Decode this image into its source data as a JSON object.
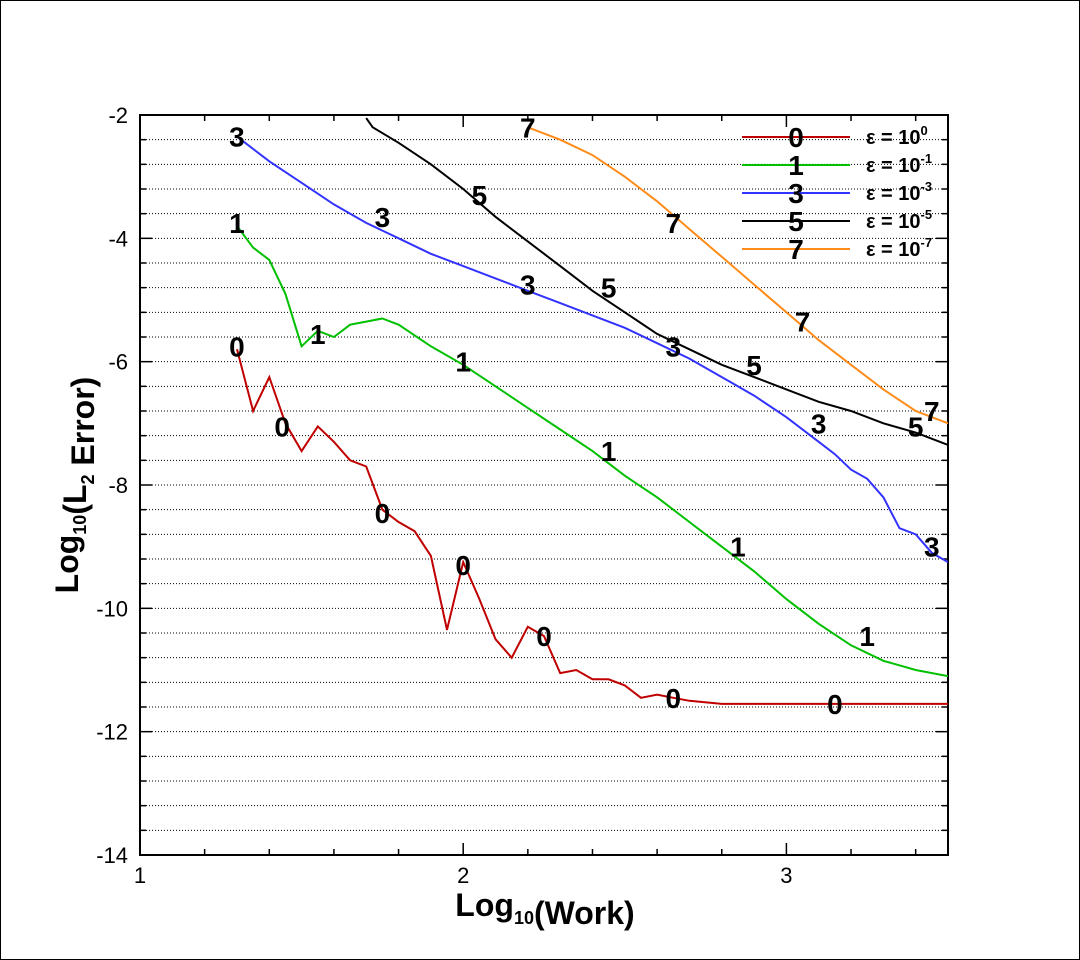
{
  "chart_data": {
    "type": "line",
    "xlabel": "Log10(Work)",
    "ylabel": "Log10(L2 Error)",
    "xlim": [
      1,
      3.5
    ],
    "ylim": [
      -14,
      -2
    ],
    "xticks": [
      "1",
      "2",
      "3"
    ],
    "yticks": [
      "-2",
      "-4",
      "-6",
      "-8",
      "-10",
      "-12",
      "-14"
    ],
    "grid": "horizontal dotted",
    "legend_position": "top-right",
    "series": [
      {
        "marker": "0",
        "label_base": "ε = 10",
        "label_exp": "0",
        "color": "#c00000",
        "x": [
          1.3,
          1.35,
          1.4,
          1.45,
          1.5,
          1.55,
          1.6,
          1.65,
          1.7,
          1.75,
          1.8,
          1.85,
          1.9,
          1.95,
          2.0,
          2.05,
          2.1,
          2.15,
          2.2,
          2.25,
          2.3,
          2.35,
          2.4,
          2.45,
          2.5,
          2.55,
          2.6,
          2.65,
          2.7,
          2.8,
          2.9,
          3.0,
          3.1,
          3.2,
          3.3,
          3.4,
          3.5
        ],
        "y": [
          -5.8,
          -6.8,
          -6.25,
          -7.0,
          -7.45,
          -7.05,
          -7.3,
          -7.6,
          -7.7,
          -8.4,
          -8.6,
          -8.75,
          -9.15,
          -10.35,
          -9.25,
          -9.85,
          -10.5,
          -10.8,
          -10.3,
          -10.45,
          -11.05,
          -11.0,
          -11.15,
          -11.15,
          -11.25,
          -11.45,
          -11.4,
          -11.45,
          -11.5,
          -11.55,
          -11.55,
          -11.55,
          -11.55,
          -11.55,
          -11.55,
          -11.55,
          -11.55
        ],
        "marker_positions": [
          [
            1.3,
            -5.75
          ],
          [
            1.44,
            -7.05
          ],
          [
            1.75,
            -8.45
          ],
          [
            2.0,
            -9.3
          ],
          [
            2.25,
            -10.45
          ],
          [
            2.65,
            -11.45
          ],
          [
            3.15,
            -11.55
          ]
        ]
      },
      {
        "marker": "1",
        "label_base": "ε = 10",
        "label_exp": "-1",
        "color": "#00c000",
        "x": [
          1.3,
          1.35,
          1.4,
          1.45,
          1.5,
          1.55,
          1.6,
          1.65,
          1.7,
          1.75,
          1.8,
          1.9,
          2.0,
          2.1,
          2.2,
          2.3,
          2.4,
          2.5,
          2.6,
          2.7,
          2.8,
          2.9,
          3.0,
          3.1,
          3.2,
          3.3,
          3.4,
          3.5
        ],
        "y": [
          -3.8,
          -4.15,
          -4.35,
          -4.9,
          -5.75,
          -5.5,
          -5.6,
          -5.4,
          -5.35,
          -5.3,
          -5.4,
          -5.75,
          -6.05,
          -6.4,
          -6.75,
          -7.1,
          -7.45,
          -7.85,
          -8.2,
          -8.6,
          -9.0,
          -9.4,
          -9.85,
          -10.25,
          -10.6,
          -10.85,
          -11.0,
          -11.1
        ],
        "marker_positions": [
          [
            1.3,
            -3.75
          ],
          [
            1.55,
            -5.55
          ],
          [
            2.0,
            -6.0
          ],
          [
            2.45,
            -7.45
          ],
          [
            2.85,
            -9.0
          ],
          [
            3.25,
            -10.45
          ]
        ]
      },
      {
        "marker": "3",
        "label_base": "ε = 10",
        "label_exp": "-3",
        "color": "#3333ff",
        "x": [
          1.3,
          1.4,
          1.5,
          1.6,
          1.7,
          1.8,
          1.9,
          2.0,
          2.1,
          2.2,
          2.3,
          2.4,
          2.5,
          2.6,
          2.7,
          2.8,
          2.9,
          3.0,
          3.1,
          3.15,
          3.2,
          3.25,
          3.3,
          3.35,
          3.4,
          3.45,
          3.5
        ],
        "y": [
          -2.35,
          -2.75,
          -3.1,
          -3.45,
          -3.75,
          -4.0,
          -4.25,
          -4.45,
          -4.65,
          -4.85,
          -5.05,
          -5.25,
          -5.45,
          -5.7,
          -5.95,
          -6.25,
          -6.55,
          -6.9,
          -7.3,
          -7.5,
          -7.75,
          -7.9,
          -8.2,
          -8.7,
          -8.8,
          -9.1,
          -9.25
        ],
        "marker_positions": [
          [
            1.3,
            -2.35
          ],
          [
            1.75,
            -3.65
          ],
          [
            2.2,
            -4.75
          ],
          [
            2.65,
            -5.75
          ],
          [
            3.1,
            -7.0
          ],
          [
            3.45,
            -9.0
          ]
        ]
      },
      {
        "marker": "5",
        "label_base": "ε = 10",
        "label_exp": "-5",
        "color": "#000000",
        "x": [
          1.7,
          1.72,
          1.8,
          1.9,
          2.0,
          2.1,
          2.2,
          2.3,
          2.4,
          2.5,
          2.6,
          2.7,
          2.8,
          2.9,
          3.0,
          3.1,
          3.2,
          3.3,
          3.4,
          3.5
        ],
        "y": [
          -2.05,
          -2.2,
          -2.45,
          -2.8,
          -3.2,
          -3.65,
          -4.05,
          -4.45,
          -4.85,
          -5.2,
          -5.55,
          -5.8,
          -6.05,
          -6.25,
          -6.45,
          -6.65,
          -6.8,
          -7.0,
          -7.15,
          -7.35
        ],
        "marker_positions": [
          [
            2.05,
            -3.3
          ],
          [
            2.45,
            -4.8
          ],
          [
            2.9,
            -6.05
          ],
          [
            3.4,
            -7.05
          ]
        ]
      },
      {
        "marker": "7",
        "label_base": "ε = 10",
        "label_exp": "-7",
        "color": "#ff8c1a",
        "x": [
          2.2,
          2.3,
          2.4,
          2.5,
          2.6,
          2.7,
          2.8,
          2.9,
          3.0,
          3.1,
          3.2,
          3.3,
          3.4,
          3.5
        ],
        "y": [
          -2.2,
          -2.4,
          -2.65,
          -3.0,
          -3.4,
          -3.85,
          -4.3,
          -4.75,
          -5.2,
          -5.65,
          -6.05,
          -6.45,
          -6.8,
          -7.0
        ],
        "marker_positions": [
          [
            2.2,
            -2.2
          ],
          [
            2.65,
            -3.75
          ],
          [
            3.05,
            -5.35
          ],
          [
            3.45,
            -6.8
          ]
        ]
      }
    ]
  }
}
